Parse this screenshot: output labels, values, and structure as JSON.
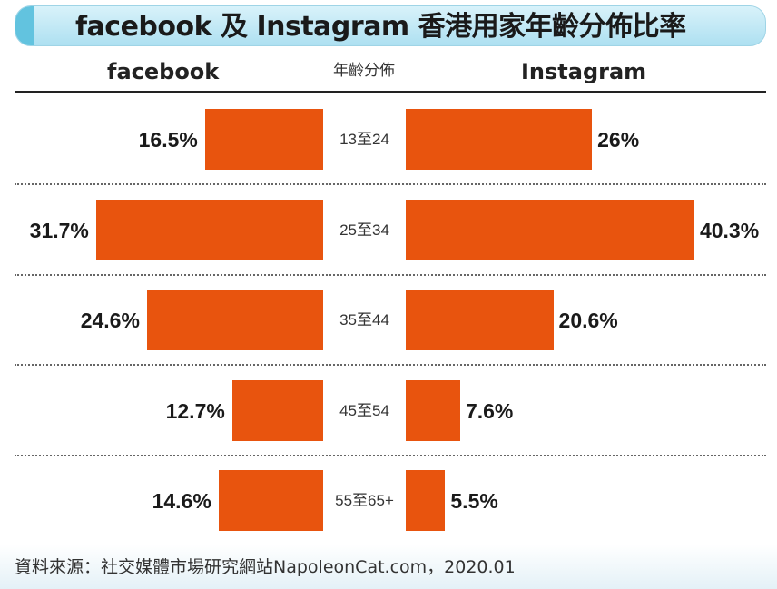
{
  "title": "facebook 及 Instagram 香港用家年齡分佈比率",
  "source": "資料來源：社交媒體市場研究網站NapoleonCat.com，2020.01",
  "colors": {
    "bar": "#e8540e",
    "title_bg": "#aee0f1",
    "title_accent": "#62c3df"
  },
  "chart_data": {
    "type": "bar",
    "orientation": "horizontal-butterfly",
    "category_header": "年齡分佈",
    "categories": [
      "13至24",
      "25至34",
      "35至44",
      "45至54",
      "55至65+"
    ],
    "series": [
      {
        "name": "facebook",
        "values": [
          16.5,
          31.7,
          24.6,
          12.7,
          14.6
        ],
        "labels": [
          "16.5%",
          "31.7%",
          "24.6%",
          "12.7%",
          "14.6%"
        ]
      },
      {
        "name": "Instagram",
        "values": [
          26,
          40.3,
          20.6,
          7.6,
          5.5
        ],
        "labels": [
          "26%",
          "40.3%",
          "20.6%",
          "7.6%",
          "5.5%"
        ]
      }
    ],
    "unit": "%",
    "legend": "column headers",
    "grid": false
  }
}
